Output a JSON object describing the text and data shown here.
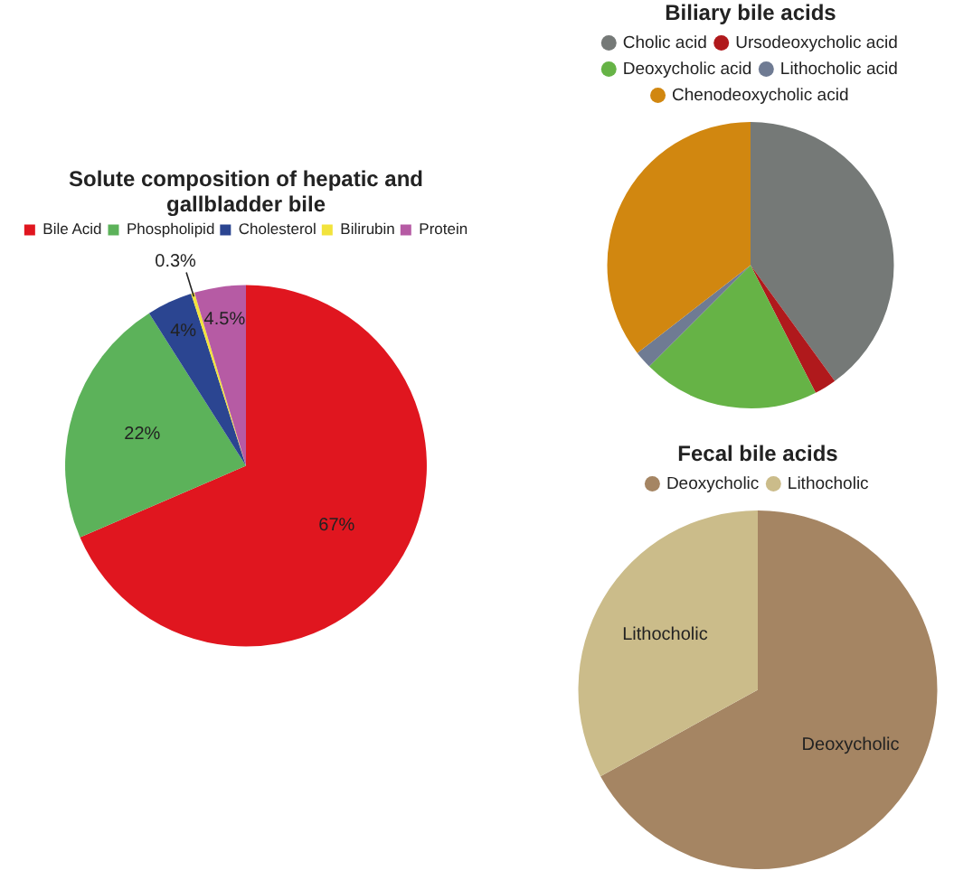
{
  "chart_data": [
    {
      "type": "pie",
      "title": "Solute composition of hepatic and gallbladder bile",
      "categories": [
        "Bile Acid",
        "Phospholipid",
        "Cholesterol",
        "Bilirubin",
        "Protein"
      ],
      "values": [
        67,
        22,
        4,
        0.3,
        4.5
      ],
      "colors": [
        "#e0161f",
        "#5cb25a",
        "#2b4591",
        "#f2e33c",
        "#b65ba4"
      ],
      "value_labels": [
        "67%",
        "22%",
        "4%",
        "0.3%",
        "4.5%"
      ],
      "legend": "top",
      "marker": "square"
    },
    {
      "type": "pie",
      "title": "Biliary bile acids",
      "categories": [
        "Cholic acid",
        "Ursodeoxycholic acid",
        "Deoxycholic acid",
        "Lithocholic acid",
        "Chenodeoxycholic acid"
      ],
      "values": [
        40,
        2.5,
        20,
        2,
        35.5
      ],
      "colors": [
        "#757977",
        "#b0191c",
        "#66b346",
        "#6f7b93",
        "#d18710"
      ],
      "legend": "top",
      "marker": "circle"
    },
    {
      "type": "pie",
      "title": "Fecal bile acids",
      "categories": [
        "Deoxycholic",
        "Lithocholic"
      ],
      "values": [
        67,
        33
      ],
      "colors": [
        "#a58563",
        "#cbbc8a"
      ],
      "value_labels": [
        "Deoxycholic",
        "Lithocholic"
      ],
      "legend": "top",
      "marker": "circle"
    }
  ]
}
